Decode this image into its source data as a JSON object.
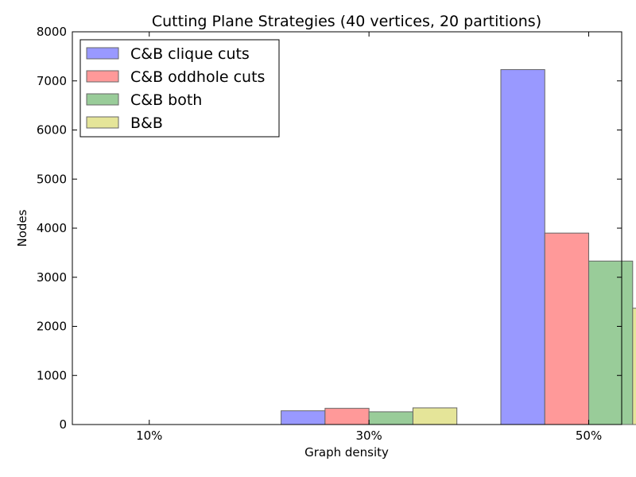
{
  "chart_data": {
    "type": "bar",
    "title": "Cutting Plane Strategies (40 vertices, 20 partitions)",
    "xlabel": "Graph density",
    "ylabel": "Nodes",
    "categories": [
      "10%",
      "30%",
      "50%"
    ],
    "ylim": [
      0,
      8000
    ],
    "yticks": [
      0,
      1000,
      2000,
      3000,
      4000,
      5000,
      6000,
      7000,
      8000
    ],
    "grid": false,
    "legend_position": "upper-left",
    "series": [
      {
        "name": "C&B clique cuts",
        "color": "#9999ff",
        "values": [
          0,
          280,
          7230
        ]
      },
      {
        "name": "C&B oddhole cuts",
        "color": "#ff9999",
        "values": [
          0,
          330,
          3900
        ]
      },
      {
        "name": "C&B both",
        "color": "#99cc99",
        "values": [
          0,
          260,
          3330
        ]
      },
      {
        "name": "B&B",
        "color": "#e5e599",
        "values": [
          0,
          340,
          2370
        ]
      }
    ]
  }
}
